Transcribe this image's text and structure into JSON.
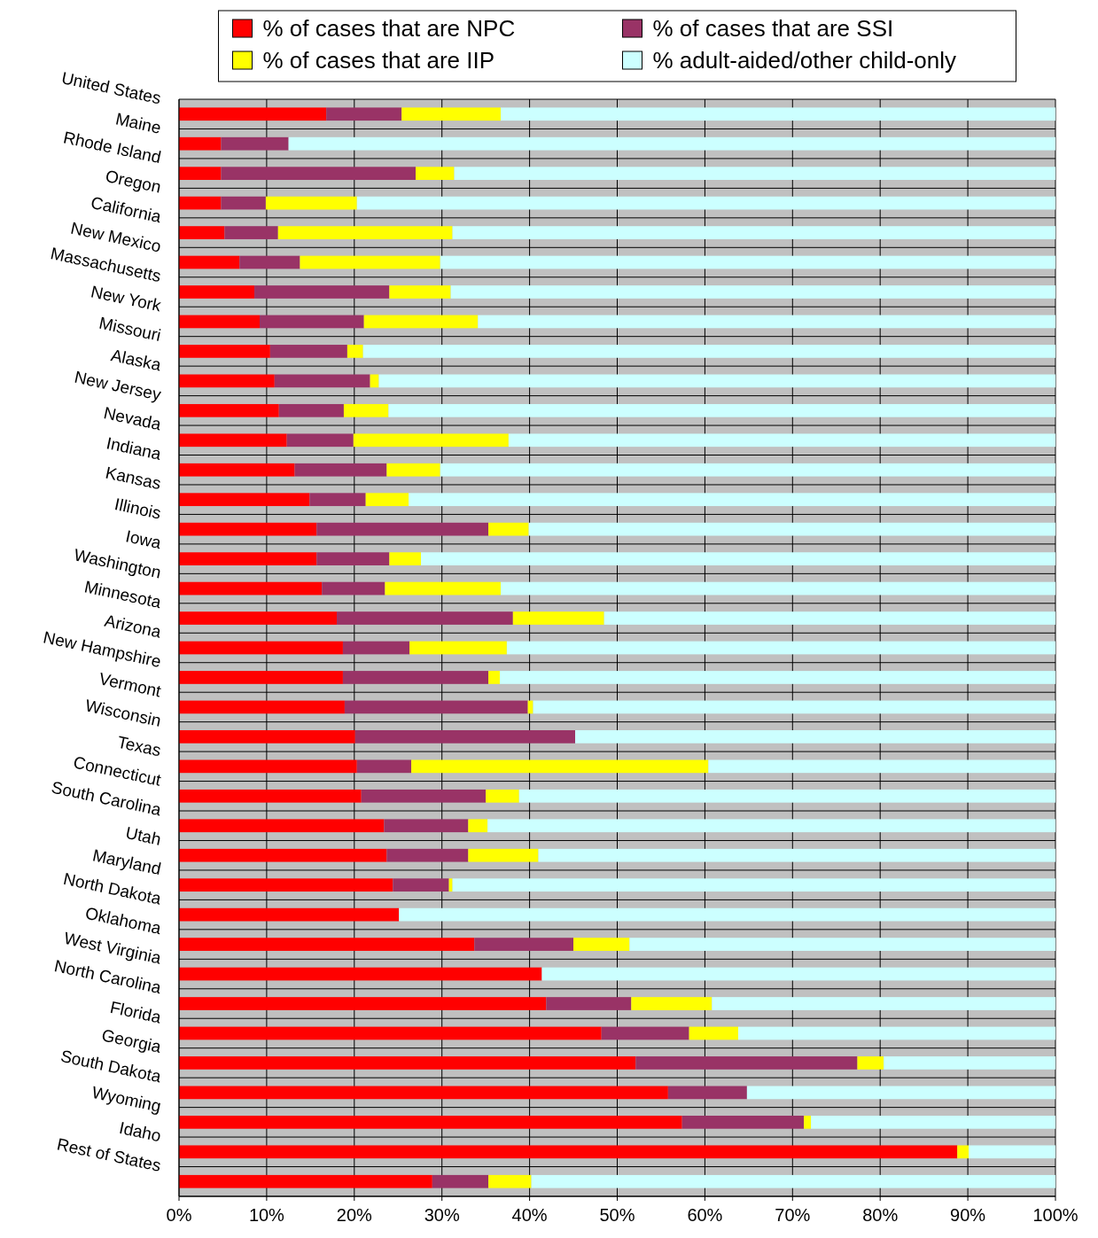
{
  "chart_data": {
    "type": "bar",
    "orientation": "horizontal",
    "stacked": true,
    "grid": true,
    "legend": "top",
    "categories": [
      "United States",
      "Maine",
      "Rhode Island",
      "Oregon",
      "California",
      "New Mexico",
      "Massachusetts",
      "New York",
      "Missouri",
      "Alaska",
      "New Jersey",
      "Nevada",
      "Indiana",
      "Kansas",
      "Illinois",
      "Iowa",
      "Washington",
      "Minnesota",
      "Arizona",
      "New Hampshire",
      "Vermont",
      "Wisconsin",
      "Texas",
      "Connecticut",
      "South Carolina",
      "Utah",
      "Maryland",
      "North Dakota",
      "Oklahoma",
      "West Virginia",
      "North Carolina",
      "Florida",
      "Georgia",
      "South Dakota",
      "Wyoming",
      "Idaho",
      "Rest of States"
    ],
    "xlim": [
      0,
      100
    ],
    "xticks": [
      {
        "value": 0,
        "label": "0%"
      },
      {
        "value": 10,
        "label": "10%"
      },
      {
        "value": 20,
        "label": "20%"
      },
      {
        "value": 30,
        "label": "30%"
      },
      {
        "value": 40,
        "label": "40%"
      },
      {
        "value": 50,
        "label": "50%"
      },
      {
        "value": 60,
        "label": "60%"
      },
      {
        "value": 70,
        "label": "70%"
      },
      {
        "value": 80,
        "label": "80%"
      },
      {
        "value": 90,
        "label": "90%"
      },
      {
        "value": 100,
        "label": "100%"
      }
    ],
    "series": [
      {
        "name": "% of cases that are NPC",
        "color": "#ff0000",
        "values": [
          16.8,
          4.8,
          4.8,
          4.8,
          5.2,
          6.9,
          8.6,
          9.2,
          10.4,
          10.9,
          11.4,
          12.3,
          13.2,
          14.9,
          15.7,
          15.7,
          16.3,
          18.0,
          18.7,
          18.7,
          18.9,
          20.1,
          20.3,
          20.8,
          23.4,
          23.7,
          24.4,
          25.1,
          33.7,
          41.4,
          41.9,
          48.2,
          52.1,
          55.8,
          57.4,
          88.8,
          28.9
        ]
      },
      {
        "name": "% of cases that are SSI",
        "color": "#993366",
        "values": [
          8.6,
          7.7,
          22.2,
          5.1,
          6.1,
          6.9,
          15.4,
          11.9,
          8.8,
          10.9,
          7.4,
          7.6,
          10.5,
          6.4,
          19.6,
          8.3,
          7.2,
          20.1,
          7.6,
          16.6,
          20.9,
          25.1,
          6.2,
          14.2,
          9.6,
          9.3,
          6.4,
          0,
          11.3,
          0,
          9.7,
          10.0,
          25.3,
          9.0,
          13.9,
          0,
          6.4
        ]
      },
      {
        "name": "% of cases that are IIP",
        "color": "#ffff00",
        "values": [
          11.3,
          0,
          4.4,
          10.4,
          19.9,
          16.0,
          7.0,
          13.0,
          1.8,
          1.0,
          5.1,
          17.7,
          6.1,
          4.9,
          4.6,
          3.6,
          13.2,
          10.4,
          11.1,
          1.3,
          0.6,
          0,
          33.9,
          3.8,
          2.2,
          8.0,
          0.4,
          0,
          6.4,
          0,
          9.2,
          5.6,
          3.0,
          0,
          0.8,
          1.3,
          4.9
        ]
      },
      {
        "name": "% adult-aided/other child-only",
        "color": "#ccffff",
        "values": [
          63.3,
          87.5,
          68.6,
          79.7,
          68.8,
          70.2,
          69.0,
          65.9,
          79.0,
          77.2,
          76.1,
          62.4,
          70.2,
          73.8,
          60.1,
          72.4,
          63.3,
          51.5,
          62.6,
          63.4,
          59.6,
          54.8,
          39.6,
          61.2,
          64.8,
          59.0,
          68.8,
          74.9,
          48.6,
          58.6,
          39.2,
          36.2,
          19.6,
          35.2,
          27.9,
          9.9,
          59.8
        ]
      }
    ]
  }
}
